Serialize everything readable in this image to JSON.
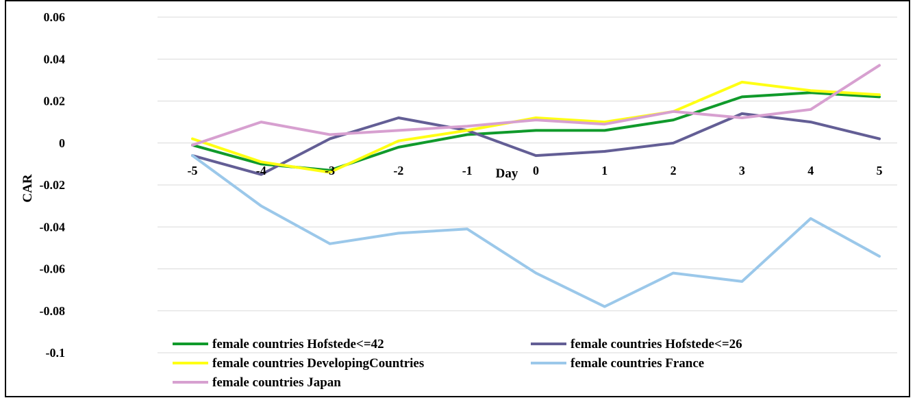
{
  "chart_data": {
    "type": "line",
    "title": "",
    "xlabel": "Day",
    "ylabel": "CAR",
    "ylim": [
      -0.1,
      0.06
    ],
    "grid": true,
    "legend_position": "bottom-left",
    "x": [
      "-5",
      "-4",
      "-3",
      "-2",
      "-1",
      "0",
      "1",
      "2",
      "3",
      "4",
      "5"
    ],
    "y_ticks": [
      "0.06",
      "0.04",
      "0.02",
      "0",
      "-0.02",
      "-0.04",
      "-0.06",
      "-0.08",
      "-0.1"
    ],
    "series": [
      {
        "name": "female countries Hofstede<=42",
        "color": "#109a2b",
        "values": [
          -0.001,
          -0.01,
          -0.013,
          -0.002,
          0.004,
          0.006,
          0.006,
          0.011,
          0.022,
          0.024,
          0.022
        ]
      },
      {
        "name": "female countries Hofstede<=26",
        "color": "#635e95",
        "values": [
          -0.006,
          -0.015,
          0.002,
          0.012,
          0.006,
          -0.006,
          -0.004,
          0.0,
          0.014,
          0.01,
          0.002
        ]
      },
      {
        "name": "female countries DevelopingCountries",
        "color": "#ffff14",
        "values": [
          0.002,
          -0.009,
          -0.014,
          0.001,
          0.006,
          0.012,
          0.01,
          0.015,
          0.029,
          0.025,
          0.023
        ]
      },
      {
        "name": "female countries France",
        "color": "#9bc8ea",
        "values": [
          -0.006,
          -0.03,
          -0.048,
          -0.043,
          -0.041,
          -0.062,
          -0.078,
          -0.062,
          -0.066,
          -0.036,
          -0.054
        ]
      },
      {
        "name": "female countries Japan",
        "color": "#d7a0d0",
        "values": [
          -0.001,
          0.01,
          0.004,
          0.006,
          0.008,
          0.011,
          0.009,
          0.015,
          0.012,
          0.016,
          0.037
        ]
      }
    ]
  }
}
